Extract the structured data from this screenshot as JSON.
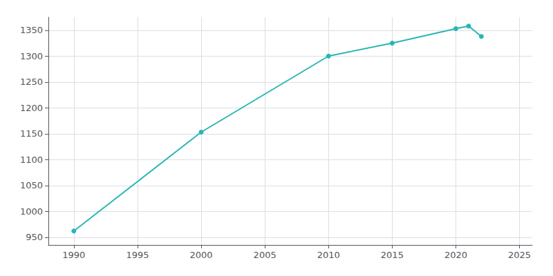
{
  "chart_data": {
    "type": "line",
    "x": [
      1990,
      2000,
      2010,
      2015,
      2020,
      2021,
      2022
    ],
    "values": [
      962,
      1153,
      1300,
      1325,
      1353,
      1358,
      1338
    ],
    "color": "#2ab5b5",
    "marker": "circle",
    "xlim": [
      1988,
      2026
    ],
    "ylim": [
      935,
      1375
    ],
    "xticks": [
      1990,
      1995,
      2000,
      2005,
      2010,
      2015,
      2020,
      2025
    ],
    "yticks": [
      950,
      1000,
      1050,
      1100,
      1150,
      1200,
      1250,
      1300,
      1350
    ],
    "grid": true
  }
}
